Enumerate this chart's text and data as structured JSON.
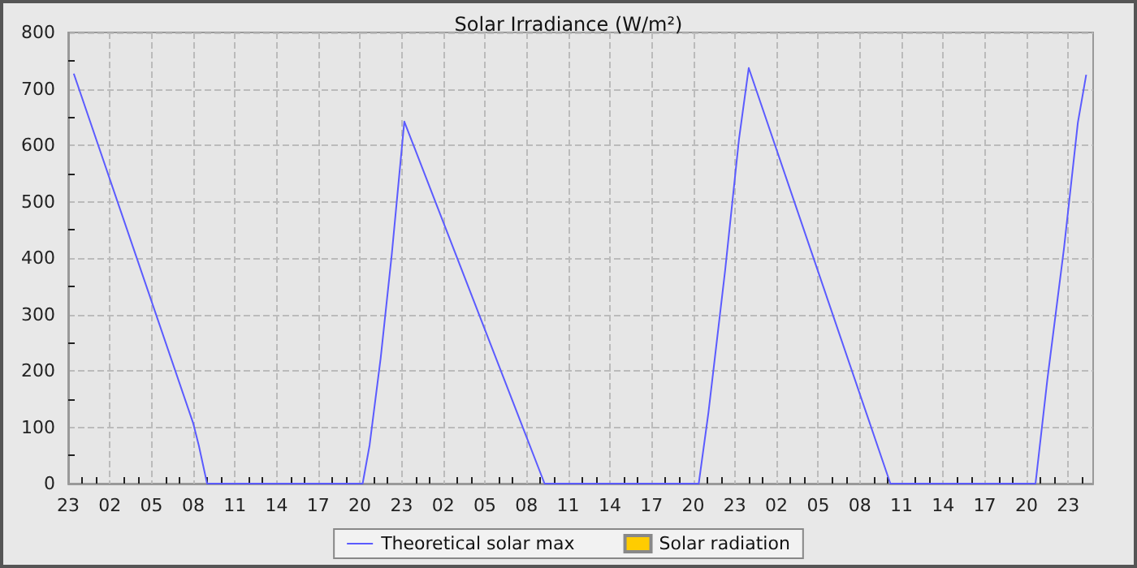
{
  "chart_data": {
    "type": "line",
    "title": "Solar Irradiance (W/m²)",
    "xlim": [
      "--01-01T23:00",
      "--01-05T00:48"
    ],
    "xticks": [
      {
        "value": "--01-01T23:00",
        "label": "23"
      },
      {
        "value": "--01-02T00:00",
        "label": null
      },
      {
        "value": "--01-02T01:00",
        "label": null
      },
      {
        "value": "--01-02T02:00",
        "label": "02"
      },
      {
        "value": "--01-02T03:00",
        "label": null
      },
      {
        "value": "--01-02T04:00",
        "label": null
      },
      {
        "value": "--01-02T05:00",
        "label": "05"
      },
      {
        "value": "--01-02T06:00",
        "label": null
      },
      {
        "value": "--01-02T07:00",
        "label": null
      },
      {
        "value": "--01-02T08:00",
        "label": "08"
      },
      {
        "value": "--01-02T09:00",
        "label": null
      },
      {
        "value": "--01-02T10:00",
        "label": null
      },
      {
        "value": "--01-02T11:00",
        "label": "11"
      },
      {
        "value": "--01-02T12:00",
        "label": null
      },
      {
        "value": "--01-02T13:00",
        "label": null
      },
      {
        "value": "--01-02T14:00",
        "label": "14"
      },
      {
        "value": "--01-02T15:00",
        "label": null
      },
      {
        "value": "--01-02T16:00",
        "label": null
      },
      {
        "value": "--01-02T17:00",
        "label": "17"
      },
      {
        "value": "--01-02T18:00",
        "label": null
      },
      {
        "value": "--01-02T19:00",
        "label": null
      },
      {
        "value": "--01-02T20:00",
        "label": "20"
      },
      {
        "value": "--01-02T21:00",
        "label": null
      },
      {
        "value": "--01-02T22:00",
        "label": null
      },
      {
        "value": "--01-02T23:00",
        "label": "23"
      },
      {
        "value": "--01-03T00:00",
        "label": null
      },
      {
        "value": "--01-03T01:00",
        "label": null
      },
      {
        "value": "--01-03T02:00",
        "label": "02"
      },
      {
        "value": "--01-03T03:00",
        "label": null
      },
      {
        "value": "--01-03T04:00",
        "label": null
      },
      {
        "value": "--01-03T05:00",
        "label": "05"
      },
      {
        "value": "--01-03T06:00",
        "label": null
      },
      {
        "value": "--01-03T07:00",
        "label": null
      },
      {
        "value": "--01-03T08:00",
        "label": "08"
      },
      {
        "value": "--01-03T09:00",
        "label": null
      },
      {
        "value": "--01-03T10:00",
        "label": null
      },
      {
        "value": "--01-03T11:00",
        "label": "11"
      },
      {
        "value": "--01-03T12:00",
        "label": null
      },
      {
        "value": "--01-03T13:00",
        "label": null
      },
      {
        "value": "--01-03T14:00",
        "label": "14"
      },
      {
        "value": "--01-03T15:00",
        "label": null
      },
      {
        "value": "--01-03T16:00",
        "label": null
      },
      {
        "value": "--01-03T17:00",
        "label": "17"
      },
      {
        "value": "--01-03T18:00",
        "label": null
      },
      {
        "value": "--01-03T19:00",
        "label": null
      },
      {
        "value": "--01-03T20:00",
        "label": "20"
      },
      {
        "value": "--01-03T21:00",
        "label": null
      },
      {
        "value": "--01-03T22:00",
        "label": null
      },
      {
        "value": "--01-03T23:00",
        "label": "23"
      },
      {
        "value": "--01-04T00:00",
        "label": null
      },
      {
        "value": "--01-04T01:00",
        "label": null
      },
      {
        "value": "--01-04T02:00",
        "label": "02"
      },
      {
        "value": "--01-04T03:00",
        "label": null
      },
      {
        "value": "--01-04T04:00",
        "label": null
      },
      {
        "value": "--01-04T05:00",
        "label": "05"
      },
      {
        "value": "--01-04T06:00",
        "label": null
      },
      {
        "value": "--01-04T07:00",
        "label": null
      },
      {
        "value": "--01-04T08:00",
        "label": "08"
      },
      {
        "value": "--01-04T09:00",
        "label": null
      },
      {
        "value": "--01-04T10:00",
        "label": null
      },
      {
        "value": "--01-04T11:00",
        "label": "11"
      },
      {
        "value": "--01-04T12:00",
        "label": null
      },
      {
        "value": "--01-04T13:00",
        "label": null
      },
      {
        "value": "--01-04T14:00",
        "label": "14"
      },
      {
        "value": "--01-04T15:00",
        "label": null
      },
      {
        "value": "--01-04T16:00",
        "label": null
      },
      {
        "value": "--01-04T17:00",
        "label": "17"
      },
      {
        "value": "--01-04T18:00",
        "label": null
      },
      {
        "value": "--01-04T19:00",
        "label": null
      },
      {
        "value": "--01-04T20:00",
        "label": "20"
      },
      {
        "value": "--01-04T21:00",
        "label": null
      },
      {
        "value": "--01-04T22:00",
        "label": null
      },
      {
        "value": "--01-04T23:00",
        "label": "23"
      },
      {
        "value": "--01-05T00:00",
        "label": null
      }
    ],
    "ylim": [
      0,
      800
    ],
    "yticks": [
      0,
      {
        "value": 50,
        "label": null
      },
      100,
      {
        "value": 150,
        "label": null
      },
      200,
      {
        "value": 250,
        "label": null
      },
      300,
      {
        "value": 350,
        "label": null
      },
      400,
      {
        "value": 450,
        "label": null
      },
      500,
      {
        "value": 550,
        "label": null
      },
      600,
      {
        "value": 650,
        "label": null
      },
      700,
      {
        "value": 750,
        "label": null
      },
      800
    ],
    "grid": true,
    "legend": "bottom",
    "marker": "none",
    "line_style": "dashed",
    "series": [
      {
        "name": "Theoretical solar max",
        "line_style": "solid",
        "color": "#5b5bff",
        "x": [
          "--01-01T23:24",
          "--01-02T08:00",
          "--01-02T08:24",
          "--01-02T09:00",
          "--01-02T20:12",
          "--01-02T20:42",
          "--01-02T21:30",
          "--01-02T22:18",
          "--01-02T23:12",
          "--01-03T09:18",
          "--01-03T20:24",
          "--01-03T21:06",
          "--01-03T22:18",
          "--01-03T23:18",
          "--01-04T00:00",
          "--01-04T10:12",
          "--01-04T20:39",
          "--01-04T21:30",
          "--01-04T22:42",
          "--01-04T23:42",
          "--01-05T00:18"
        ],
        "values": [
          727,
          107,
          68,
          0,
          0,
          68,
          223,
          407,
          642,
          0,
          0,
          126,
          378,
          611,
          737,
          0,
          0,
          184,
          417,
          640,
          725
        ]
      },
      {
        "name": "Solar radiation",
        "type": "bar",
        "color": "#ffcc00"
      }
    ]
  }
}
